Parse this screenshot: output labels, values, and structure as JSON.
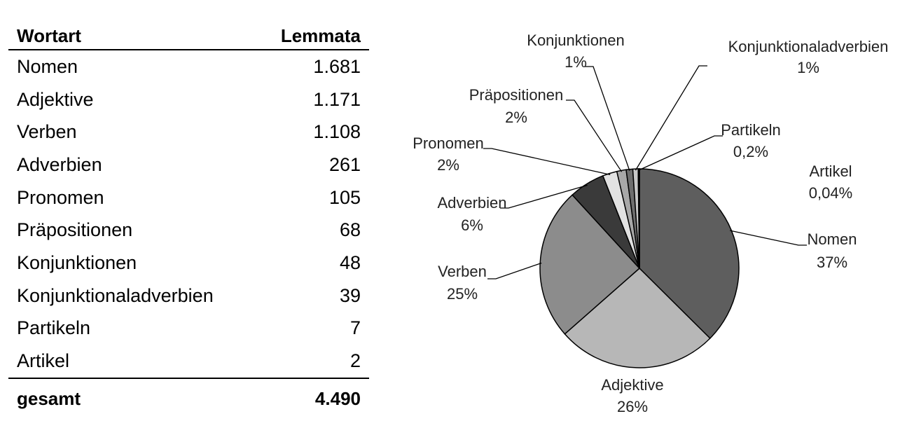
{
  "table": {
    "header": {
      "wortart": "Wortart",
      "lemmata": "Lemmata"
    },
    "rows": [
      {
        "wortart": "Nomen",
        "lemmata": "1.681"
      },
      {
        "wortart": "Adjektive",
        "lemmata": "1.171"
      },
      {
        "wortart": "Verben",
        "lemmata": "1.108"
      },
      {
        "wortart": "Adverbien",
        "lemmata": "261"
      },
      {
        "wortart": "Pronomen",
        "lemmata": "105"
      },
      {
        "wortart": "Präpositionen",
        "lemmata": "68"
      },
      {
        "wortart": "Konjunktionen",
        "lemmata": "48"
      },
      {
        "wortart": "Konjunktionaladverbien",
        "lemmata": "39"
      },
      {
        "wortart": "Partikeln",
        "lemmata": "7"
      },
      {
        "wortart": "Artikel",
        "lemmata": "2"
      }
    ],
    "total": {
      "label": "gesamt",
      "value": "4.490"
    }
  },
  "chart_data": {
    "type": "pie",
    "slices": [
      {
        "label": "Nomen",
        "pct_label": "37%",
        "value": 1681,
        "color": "#5e5e5e"
      },
      {
        "label": "Adjektive",
        "pct_label": "26%",
        "value": 1171,
        "color": "#b7b7b7"
      },
      {
        "label": "Verben",
        "pct_label": "25%",
        "value": 1108,
        "color": "#8c8c8c"
      },
      {
        "label": "Adverbien",
        "pct_label": "6%",
        "value": 261,
        "color": "#3a3a3a"
      },
      {
        "label": "Pronomen",
        "pct_label": "2%",
        "value": 105,
        "color": "#e2e2e2"
      },
      {
        "label": "Präpositionen",
        "pct_label": "2%",
        "value": 68,
        "color": "#a8a8a8"
      },
      {
        "label": "Konjunktionen",
        "pct_label": "1%",
        "value": 48,
        "color": "#6e6e6e"
      },
      {
        "label": "Konjunktionaladverbien",
        "pct_label": "1%",
        "value": 39,
        "color": "#c8c8c8"
      },
      {
        "label": "Partikeln",
        "pct_label": "0,2%",
        "value": 7,
        "color": "#333333"
      },
      {
        "label": "Artikel",
        "pct_label": "0,04%",
        "value": 2,
        "color": "#111111"
      }
    ]
  }
}
